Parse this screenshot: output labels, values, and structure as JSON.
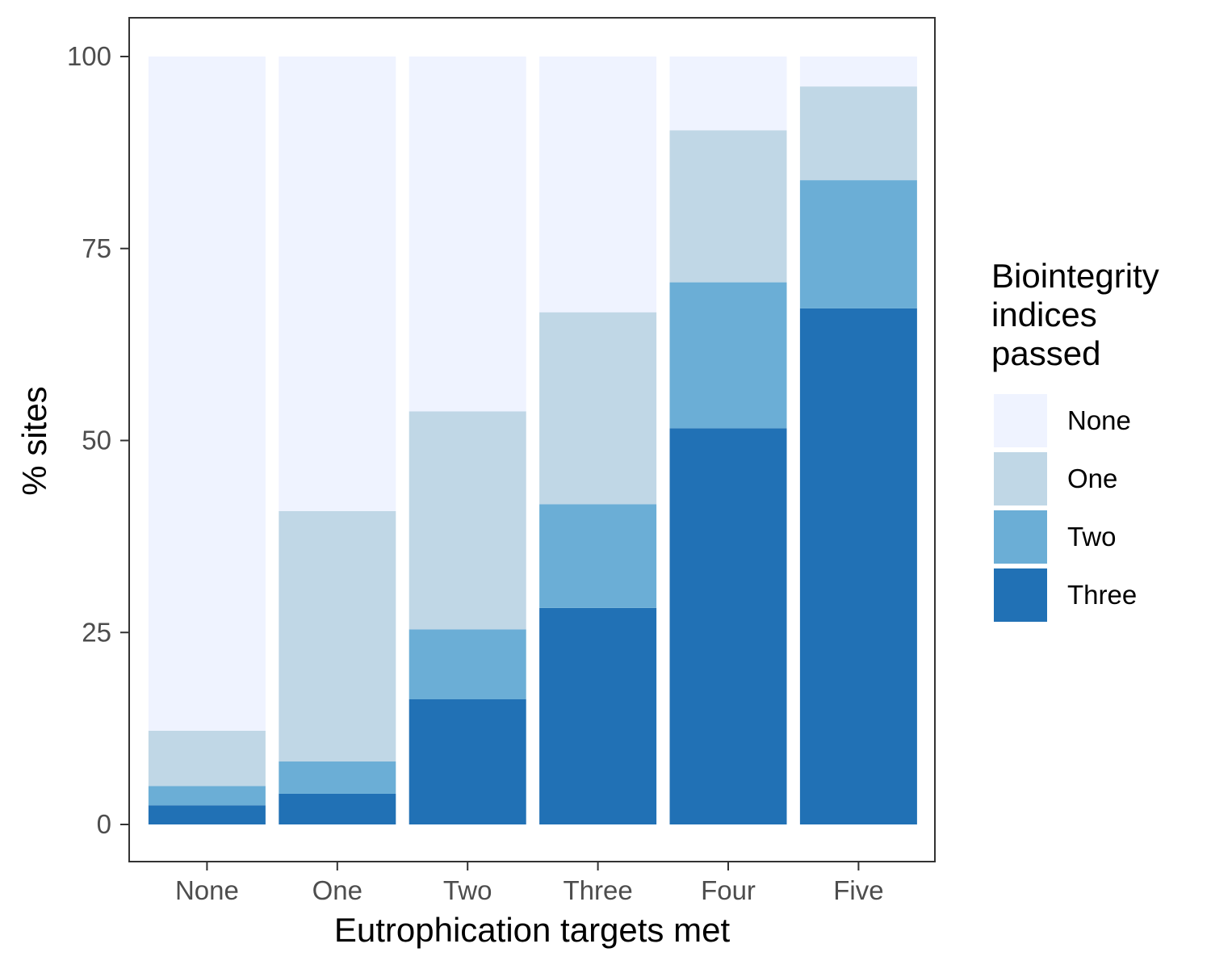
{
  "chart_data": {
    "type": "bar",
    "stacked": true,
    "categories": [
      "None",
      "One",
      "Two",
      "Three",
      "Four",
      "Five"
    ],
    "series": [
      {
        "name": "Three",
        "color": "#2171b5",
        "values": [
          2.5,
          4.0,
          16.3,
          28.2,
          51.6,
          67.2
        ]
      },
      {
        "name": "Two",
        "color": "#6baed6",
        "values": [
          2.5,
          4.2,
          9.1,
          13.5,
          19.0,
          16.7
        ]
      },
      {
        "name": "One",
        "color": "#c0d7e6",
        "values": [
          7.2,
          32.6,
          28.4,
          25.0,
          19.8,
          12.2
        ]
      },
      {
        "name": "None",
        "color": "#eff3ff",
        "values": [
          87.8,
          59.2,
          46.2,
          33.3,
          9.6,
          3.9
        ]
      }
    ],
    "xlabel": "Eutrophication targets met",
    "ylabel": "% sites",
    "ylim": [
      0,
      100
    ],
    "yticks": [
      0,
      25,
      50,
      75,
      100
    ],
    "grid": false,
    "legend": {
      "title_lines": [
        "Biointegrity",
        "indices",
        "passed"
      ],
      "entries": [
        "None",
        "One",
        "Two",
        "Three"
      ],
      "placement": "right"
    }
  }
}
